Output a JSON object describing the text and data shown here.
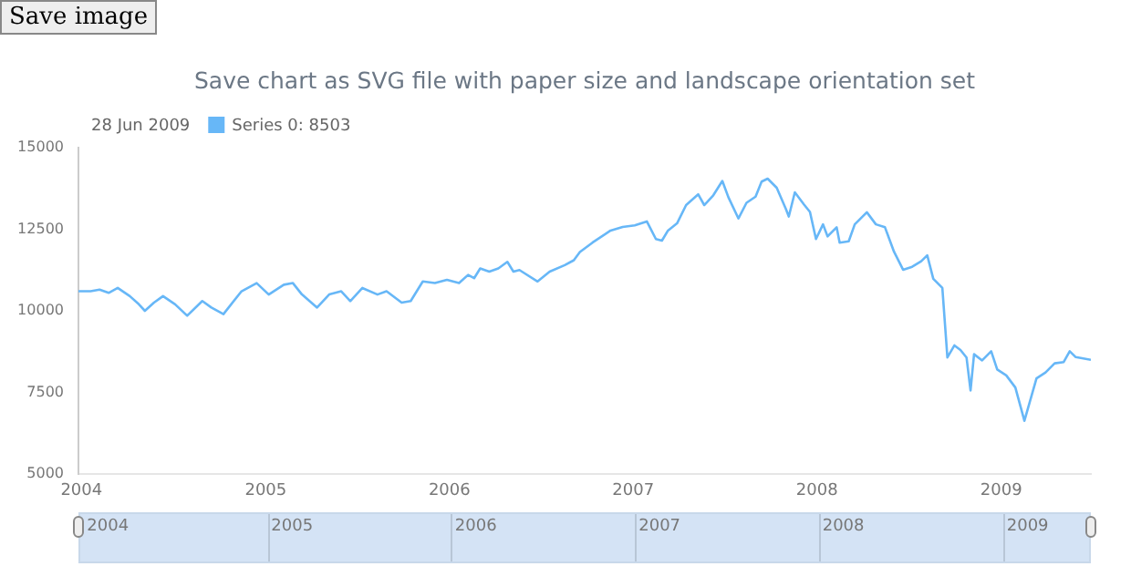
{
  "chart_data": {
    "type": "line",
    "title": "Save chart as SVG file with paper size and landscape orientation set",
    "annotations": [
      "Save image",
      "28 Jun 2009"
    ],
    "legend": "top left",
    "marker": "none",
    "line_style": "solid",
    "grid": false,
    "xlim": [
      "2003-12-26",
      "2009-06-28"
    ],
    "xticks": [
      {
        "value": "2004-01-01",
        "label": "2004"
      },
      {
        "value": "2005-01-01",
        "label": "2005"
      },
      {
        "value": "2006-01-01",
        "label": "2006"
      },
      {
        "value": "2007-01-01",
        "label": "2007"
      },
      {
        "value": "2008-01-01",
        "label": "2008"
      },
      {
        "value": "2009-01-01",
        "label": "2009"
      }
    ],
    "ylim": [
      5000,
      15000
    ],
    "yticks": [
      5000,
      7500,
      10000,
      12500,
      15000
    ],
    "x": [
      "2003-12-26",
      "2004-01-19",
      "2004-02-06",
      "2004-02-24",
      "2004-03-13",
      "2004-04-06",
      "2004-04-24",
      "2004-05-06",
      "2004-05-24",
      "2004-06-11",
      "2004-07-05",
      "2004-07-29",
      "2004-08-28",
      "2004-09-15",
      "2004-10-09",
      "2004-11-14",
      "2004-12-14",
      "2005-01-07",
      "2005-02-06",
      "2005-02-24",
      "2005-03-14",
      "2005-04-13",
      "2005-05-07",
      "2005-05-31",
      "2005-06-18",
      "2005-07-12",
      "2005-08-11",
      "2005-08-29",
      "2005-09-28",
      "2005-10-16",
      "2005-11-09",
      "2005-12-03",
      "2005-12-27",
      "2006-01-20",
      "2006-02-07",
      "2006-02-19",
      "2006-03-03",
      "2006-03-21",
      "2006-04-08",
      "2006-04-26",
      "2006-05-08",
      "2006-05-20",
      "2006-06-25",
      "2006-07-19",
      "2006-08-18",
      "2006-09-05",
      "2006-09-17",
      "2006-10-12",
      "2006-11-17",
      "2006-12-11",
      "2007-01-04",
      "2007-01-28",
      "2007-02-15",
      "2007-02-27",
      "2007-03-11",
      "2007-03-29",
      "2007-04-16",
      "2007-05-10",
      "2007-05-22",
      "2007-06-09",
      "2007-06-27",
      "2007-07-09",
      "2007-07-29",
      "2007-08-14",
      "2007-09-01",
      "2007-09-13",
      "2007-09-25",
      "2007-10-13",
      "2007-10-31",
      "2007-11-06",
      "2007-11-18",
      "2007-12-06",
      "2007-12-18",
      "2007-12-30",
      "2008-01-13",
      "2008-01-22",
      "2008-02-09",
      "2008-02-15",
      "2008-03-04",
      "2008-03-16",
      "2008-04-09",
      "2008-04-27",
      "2008-05-15",
      "2008-06-02",
      "2008-06-20",
      "2008-07-08",
      "2008-07-26",
      "2008-08-07",
      "2008-08-19",
      "2008-09-06",
      "2008-09-16",
      "2008-09-30",
      "2008-10-12",
      "2008-10-24",
      "2008-11-01",
      "2008-11-08",
      "2008-11-24",
      "2008-12-12",
      "2008-12-24",
      "2009-01-11",
      "2009-01-29",
      "2009-02-16",
      "2009-02-28",
      "2009-03-12",
      "2009-03-30",
      "2009-04-17",
      "2009-05-05",
      "2009-05-17",
      "2009-05-29",
      "2009-06-28"
    ],
    "series": [
      {
        "name": "Series 0: 8503",
        "color": "#67b7f7",
        "values": [
          10600,
          10600,
          10650,
          10550,
          10700,
          10450,
          10200,
          10000,
          10250,
          10450,
          10200,
          9850,
          10300,
          10100,
          9900,
          10600,
          10850,
          10500,
          10800,
          10850,
          10500,
          10100,
          10500,
          10600,
          10300,
          10700,
          10500,
          10600,
          10250,
          10300,
          10900,
          10850,
          10950,
          10850,
          11100,
          11000,
          11300,
          11200,
          11300,
          11500,
          11200,
          11250,
          10900,
          11200,
          11400,
          11550,
          11800,
          12090,
          12460,
          12570,
          12620,
          12740,
          12200,
          12150,
          12460,
          12680,
          13240,
          13570,
          13240,
          13540,
          13980,
          13480,
          12830,
          13310,
          13500,
          13960,
          14050,
          13770,
          13130,
          12890,
          13630,
          13260,
          13030,
          12200,
          12650,
          12280,
          12560,
          12090,
          12130,
          12650,
          13020,
          12650,
          12560,
          11810,
          11260,
          11350,
          11520,
          11700,
          10980,
          10700,
          8570,
          8940,
          8800,
          8570,
          7560,
          8670,
          8480,
          8760,
          8200,
          8020,
          7650,
          6630,
          7280,
          7930,
          8110,
          8390,
          8430,
          8760,
          8580,
          8500
        ]
      }
    ]
  }
}
